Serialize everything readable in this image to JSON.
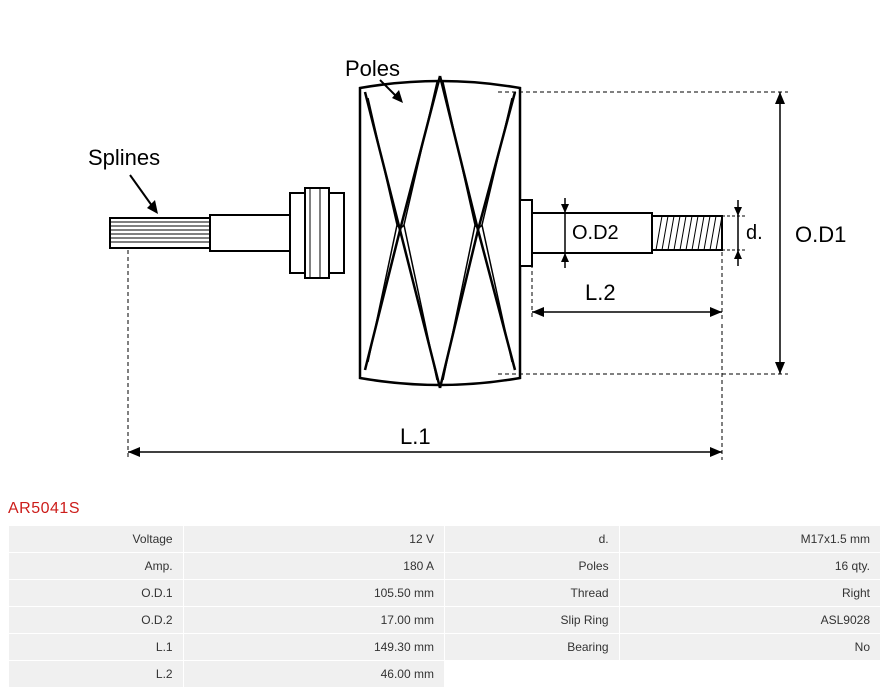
{
  "partNumber": "AR5041S",
  "diagram": {
    "labels": {
      "poles": "Poles",
      "splines": "Splines",
      "od2": "O.D2",
      "d": "d.",
      "od1": "O.D1",
      "l1": "L.1",
      "l2": "L.2"
    },
    "colors": {
      "line": "#000000",
      "fill": "#ffffff",
      "hatch": "#333333",
      "partNumber": "#cc1d1a"
    },
    "strokeWidth": 2,
    "labelFontSize": 20
  },
  "specs": {
    "rows": [
      {
        "label1": "Voltage",
        "value1": "12 V",
        "label2": "d.",
        "value2": "M17x1.5 mm"
      },
      {
        "label1": "Amp.",
        "value1": "180 A",
        "label2": "Poles",
        "value2": "16 qty."
      },
      {
        "label1": "O.D.1",
        "value1": "105.50 mm",
        "label2": "Thread",
        "value2": "Right"
      },
      {
        "label1": "O.D.2",
        "value1": "17.00 mm",
        "label2": "Slip Ring",
        "value2": "ASL9028"
      },
      {
        "label1": "L.1",
        "value1": "149.30 mm",
        "label2": "Bearing",
        "value2": "No"
      },
      {
        "label1": "L.2",
        "value1": "46.00 mm",
        "label2": "",
        "value2": ""
      }
    ],
    "cellBackground": "#f0f0f0",
    "textColor": "#333333",
    "fontSize": 12
  }
}
